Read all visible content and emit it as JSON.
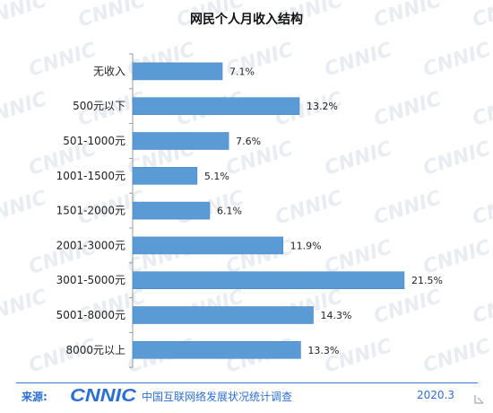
{
  "title": "网民个人月收入结构",
  "chart_data": {
    "type": "bar",
    "orientation": "horizontal",
    "title": "网民个人月收入结构",
    "categories": [
      "无收入",
      "500元以下",
      "501-1000元",
      "1001-1500元",
      "1501-2000元",
      "2001-3000元",
      "3001-5000元",
      "5001-8000元",
      "8000元以上"
    ],
    "values": [
      7.1,
      13.2,
      7.6,
      5.1,
      6.1,
      11.9,
      21.5,
      14.3,
      13.3
    ],
    "value_labels": [
      "7.1%",
      "13.2%",
      "7.6%",
      "5.1%",
      "6.1%",
      "11.9%",
      "21.5%",
      "14.3%",
      "13.3%"
    ],
    "unit": "%",
    "xlim": [
      0,
      22
    ],
    "grid": false,
    "bar_color": "#5b9bd5"
  },
  "footer": {
    "source_label": "来源:",
    "logo_text": "CNNIC",
    "org_name": "中国互联网络发展状况统计调查",
    "date": "2020.3"
  },
  "watermark_text": "CNNIC",
  "colors": {
    "accent": "#2d6fd1",
    "bar": "#5b9bd5",
    "bar_edge": "#4a88c4"
  }
}
